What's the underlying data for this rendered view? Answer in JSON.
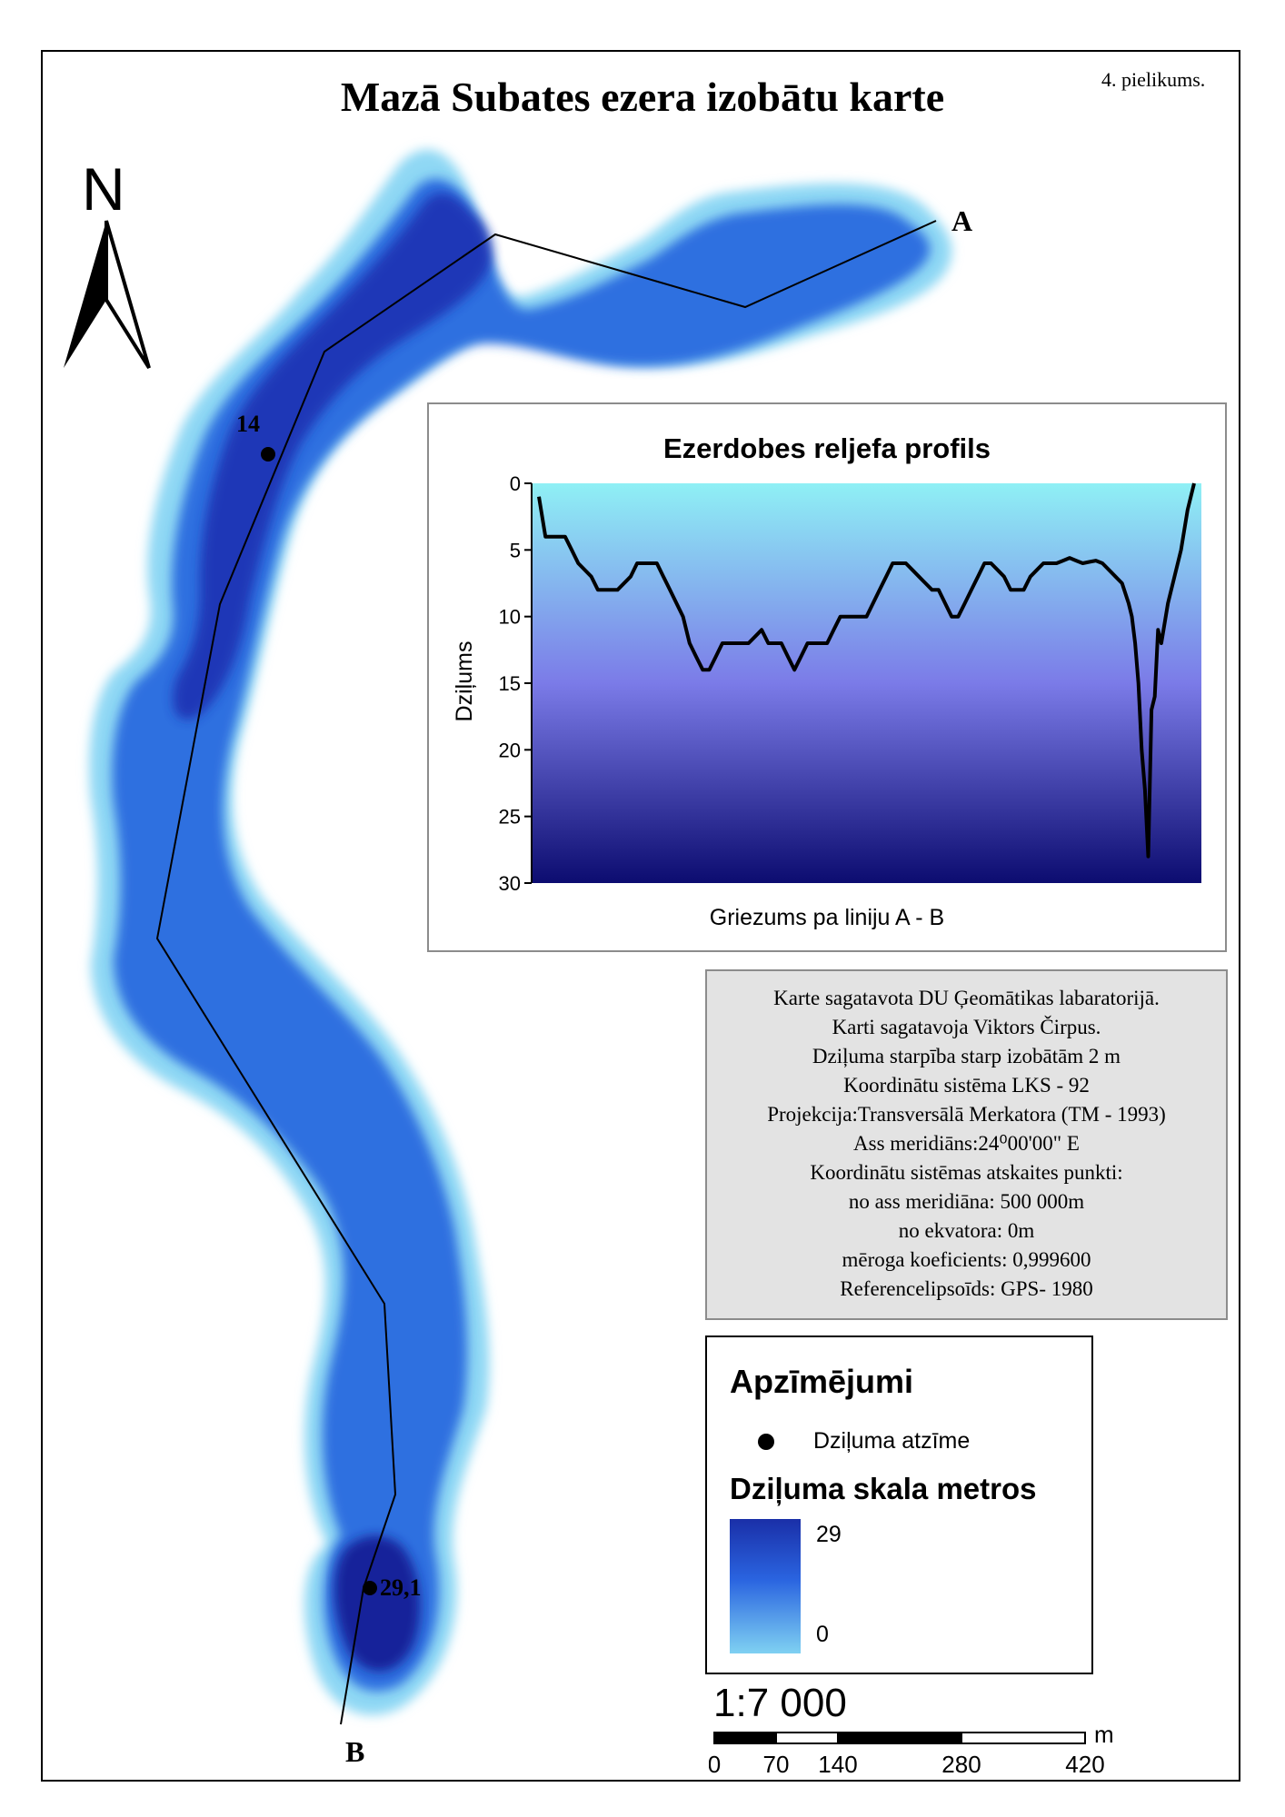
{
  "page_title": "Mazā Subates ezera izobātu karte",
  "appendix_label": "4. pielikums.",
  "north_label": "N",
  "profile_points": {
    "start": "A",
    "end": "B"
  },
  "depth_marks": [
    {
      "value": "14"
    },
    {
      "value": "29,1"
    }
  ],
  "chart_data": {
    "type": "area",
    "title": "Ezerdobes reljefa profils",
    "xlabel": "Griezums pa liniju A - B",
    "ylabel": "Dziļums",
    "ylim": [
      0,
      30
    ],
    "y_inverted": true,
    "yticks": [
      "0",
      "5",
      "10",
      "15",
      "20",
      "25",
      "30"
    ],
    "x": [
      0,
      1,
      2,
      4,
      5,
      6,
      8,
      9,
      10,
      11,
      12,
      14,
      15,
      16,
      17,
      18,
      19,
      20,
      22,
      23,
      24,
      25,
      26,
      27,
      28,
      29,
      30,
      31,
      32,
      33,
      34,
      35,
      36,
      37,
      38,
      39,
      40,
      41,
      42,
      43,
      44,
      45,
      46,
      47,
      48,
      49,
      50,
      51,
      52,
      53,
      54,
      55,
      56,
      57,
      58,
      59,
      60,
      61,
      62,
      63,
      64,
      65,
      66,
      67,
      68,
      69,
      70,
      71,
      72,
      73,
      74,
      75,
      76,
      77,
      78,
      79,
      80,
      81,
      82,
      83,
      84,
      85,
      86,
      87,
      88,
      89,
      90,
      90.5,
      91,
      91.5,
      92,
      92.5,
      93,
      93.5,
      94,
      94.5,
      95,
      96,
      97,
      98,
      99,
      100
    ],
    "depth": [
      1,
      4,
      4,
      4,
      5,
      6,
      7,
      8,
      8,
      8,
      8,
      7,
      6,
      6,
      6,
      6,
      7,
      8,
      10,
      12,
      13,
      14,
      14,
      13,
      12,
      12,
      12,
      12,
      12,
      11.5,
      11,
      12,
      12,
      12,
      13,
      14,
      13,
      12,
      12,
      12,
      12,
      11,
      10,
      10,
      10,
      10,
      10,
      9,
      8,
      7,
      6,
      6,
      6,
      6.5,
      7,
      7.5,
      8,
      8,
      9,
      10,
      10,
      9,
      8,
      7,
      6,
      6,
      6.5,
      7,
      8,
      8,
      8,
      7,
      6.5,
      6,
      6,
      6,
      5.8,
      5.6,
      5.8,
      6,
      5.9,
      5.8,
      6,
      6.5,
      7,
      7.5,
      9,
      10,
      12,
      15,
      20,
      23,
      28,
      17,
      16,
      11,
      12,
      9,
      7,
      5,
      2,
      0
    ],
    "fill_gradient": [
      "#8ff0f5",
      "#7b7be8",
      "#0c0c70"
    ]
  },
  "info_lines": [
    "Karte sagatavota DU Ģeomātikas labaratorijā.",
    "Karti sagatavoja Viktors Čirpus.",
    "Dziļuma starpība starp izobātām 2 m",
    "Koordinātu sistēma LKS - 92",
    "Projekcija:Transversālā Merkatora (TM - 1993)",
    "Ass meridiāns:24⁰00'00\" E",
    "Koordinātu sistēmas atskaites punkti:",
    "no ass meridiāna: 500 000m",
    "no ekvatora: 0m",
    "mēroga koeficients: 0,999600",
    "Referencelipsoīds: GPS- 1980"
  ],
  "legend": {
    "title": "Apzīmējumi",
    "point_label": "Dziļuma atzīme",
    "scale_title": "Dziļuma skala metros",
    "max": "29",
    "min": "0"
  },
  "scale": {
    "ratio": "1:7 000",
    "unit": "m",
    "ticks": [
      "0",
      "70",
      "140",
      "280",
      "420"
    ]
  },
  "colors": {
    "lake_shallow": "#8fd8f4",
    "lake_mid": "#2f6fe0",
    "lake_deep": "#16229a"
  }
}
